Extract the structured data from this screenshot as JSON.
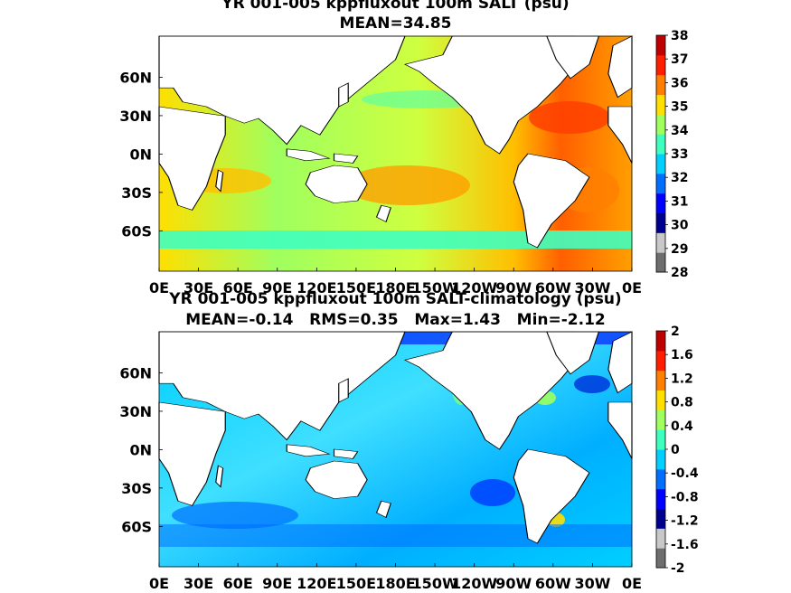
{
  "chart_data": [
    {
      "type": "heatmap",
      "title": "YR 001-005 kppfluxout 100m SALT (psu)",
      "subtitle": "MEAN=34.85",
      "x_ticks": [
        "0E",
        "30E",
        "60E",
        "90E",
        "120E",
        "150E",
        "180E",
        "150W",
        "120W",
        "90W",
        "60W",
        "30W",
        "0E"
      ],
      "y_ticks": [
        "60N",
        "30N",
        "0N",
        "30S",
        "60S"
      ],
      "colorbar_ticks": [
        "38",
        "37",
        "36",
        "35",
        "34",
        "33",
        "32",
        "31",
        "30",
        "29",
        "28"
      ],
      "colorbar_range": [
        28,
        38
      ],
      "colorbar_colors": [
        "#6e6e6e",
        "#c8c8c8",
        "#00008f",
        "#0000ff",
        "#006fff",
        "#00cfff",
        "#3fffbf",
        "#9fff5f",
        "#ffdf00",
        "#ff7f00",
        "#ff1f00",
        "#bf0000"
      ],
      "summary": {
        "mean": 34.85
      }
    },
    {
      "type": "heatmap",
      "title": "YR 001-005 kppfluxout 100m SALT-climatology (psu)",
      "subtitle": "MEAN=-0.14   RMS=0.35   Max=1.43   Min=-2.12",
      "x_ticks": [
        "0E",
        "30E",
        "60E",
        "90E",
        "120E",
        "150E",
        "180E",
        "150W",
        "120W",
        "90W",
        "60W",
        "30W",
        "0E"
      ],
      "y_ticks": [
        "60N",
        "30N",
        "0N",
        "30S",
        "60S"
      ],
      "colorbar_ticks": [
        "2",
        "1.6",
        "1.2",
        "0.8",
        "0.4",
        "0",
        "-0.4",
        "-0.8",
        "-1.2",
        "-1.6",
        "-2"
      ],
      "colorbar_range": [
        -2,
        2
      ],
      "colorbar_colors": [
        "#6e6e6e",
        "#c8c8c8",
        "#00008f",
        "#0000ff",
        "#006fff",
        "#00cfff",
        "#3fffbf",
        "#9fff5f",
        "#ffdf00",
        "#ff7f00",
        "#ff1f00",
        "#bf0000"
      ],
      "summary": {
        "mean": -0.14,
        "rms": 0.35,
        "max": 1.43,
        "min": -2.12
      }
    }
  ]
}
